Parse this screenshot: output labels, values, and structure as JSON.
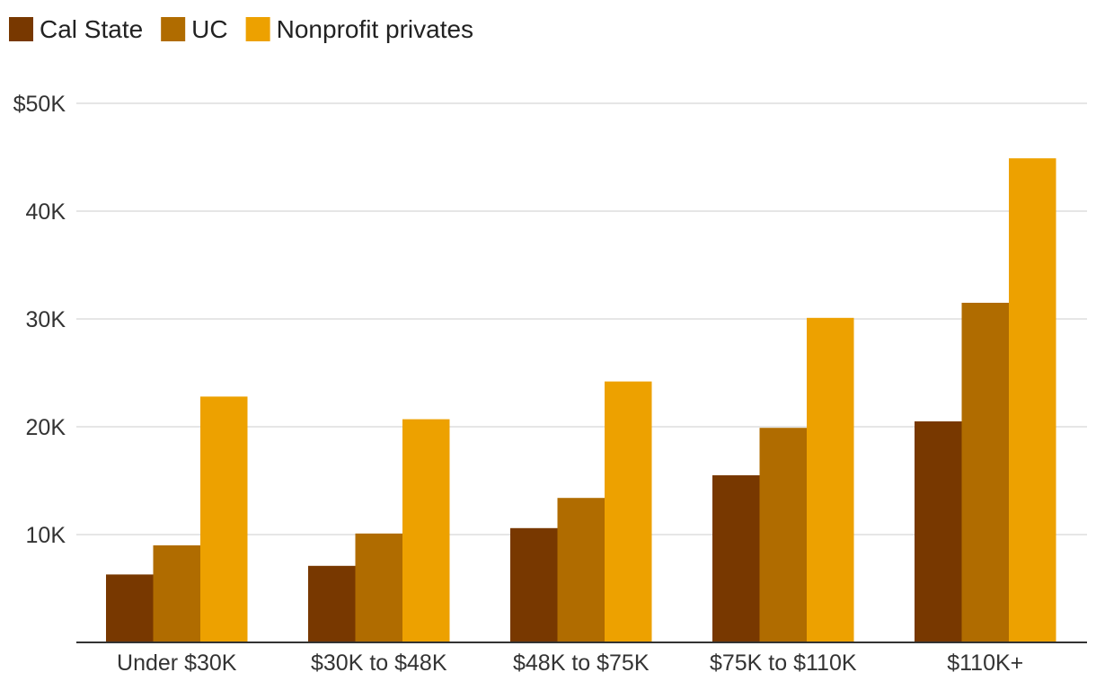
{
  "chart_data": {
    "type": "bar",
    "categories": [
      "Under $30K",
      "$30K to $48K",
      "$48K to $75K",
      "$75K to $110K",
      "$110K+"
    ],
    "series": [
      {
        "name": "Cal State",
        "color": "#783800",
        "values": [
          6300,
          7100,
          10600,
          15500,
          20500
        ]
      },
      {
        "name": "UC",
        "color": "#b06c00",
        "values": [
          9000,
          10100,
          13400,
          19900,
          31500
        ]
      },
      {
        "name": "Nonprofit privates",
        "color": "#eda100",
        "values": [
          22800,
          20700,
          24200,
          30100,
          44900
        ]
      }
    ],
    "y_ticks": [
      {
        "value": 10000,
        "label": "10K"
      },
      {
        "value": 20000,
        "label": "20K"
      },
      {
        "value": 30000,
        "label": "30K"
      },
      {
        "value": 40000,
        "label": "40K"
      },
      {
        "value": 50000,
        "label": "$50K"
      }
    ],
    "ylim": [
      0,
      50000
    ],
    "grid": true,
    "legend_position": "top-left"
  }
}
